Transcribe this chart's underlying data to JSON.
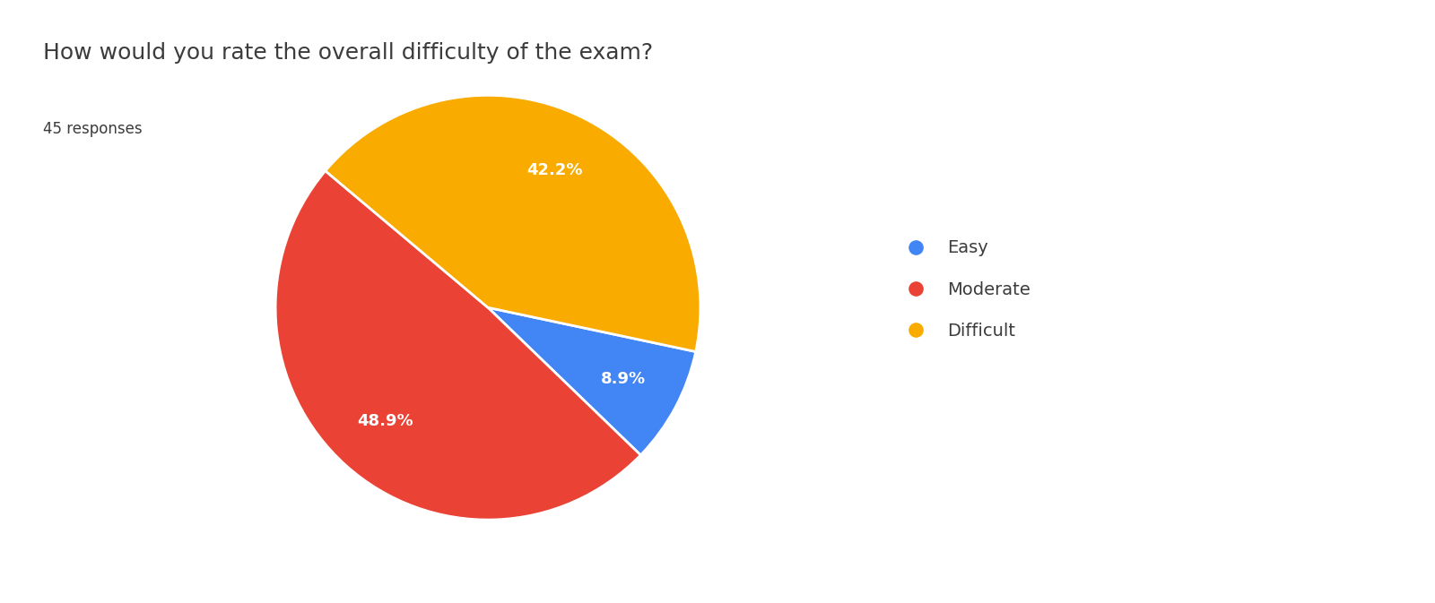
{
  "title": "How would you rate the overall difficulty of the exam?",
  "subtitle": "45 responses",
  "labels": [
    "Easy",
    "Moderate",
    "Difficult"
  ],
  "percentages": [
    8.9,
    48.9,
    42.2
  ],
  "colors": [
    "#4285F4",
    "#EA4335",
    "#F9AB00"
  ],
  "title_fontsize": 18,
  "subtitle_fontsize": 12,
  "autopct_fontsize": 13,
  "legend_fontsize": 14,
  "background_color": "#ffffff",
  "text_color": "#3c3c3c",
  "startangle": -12
}
